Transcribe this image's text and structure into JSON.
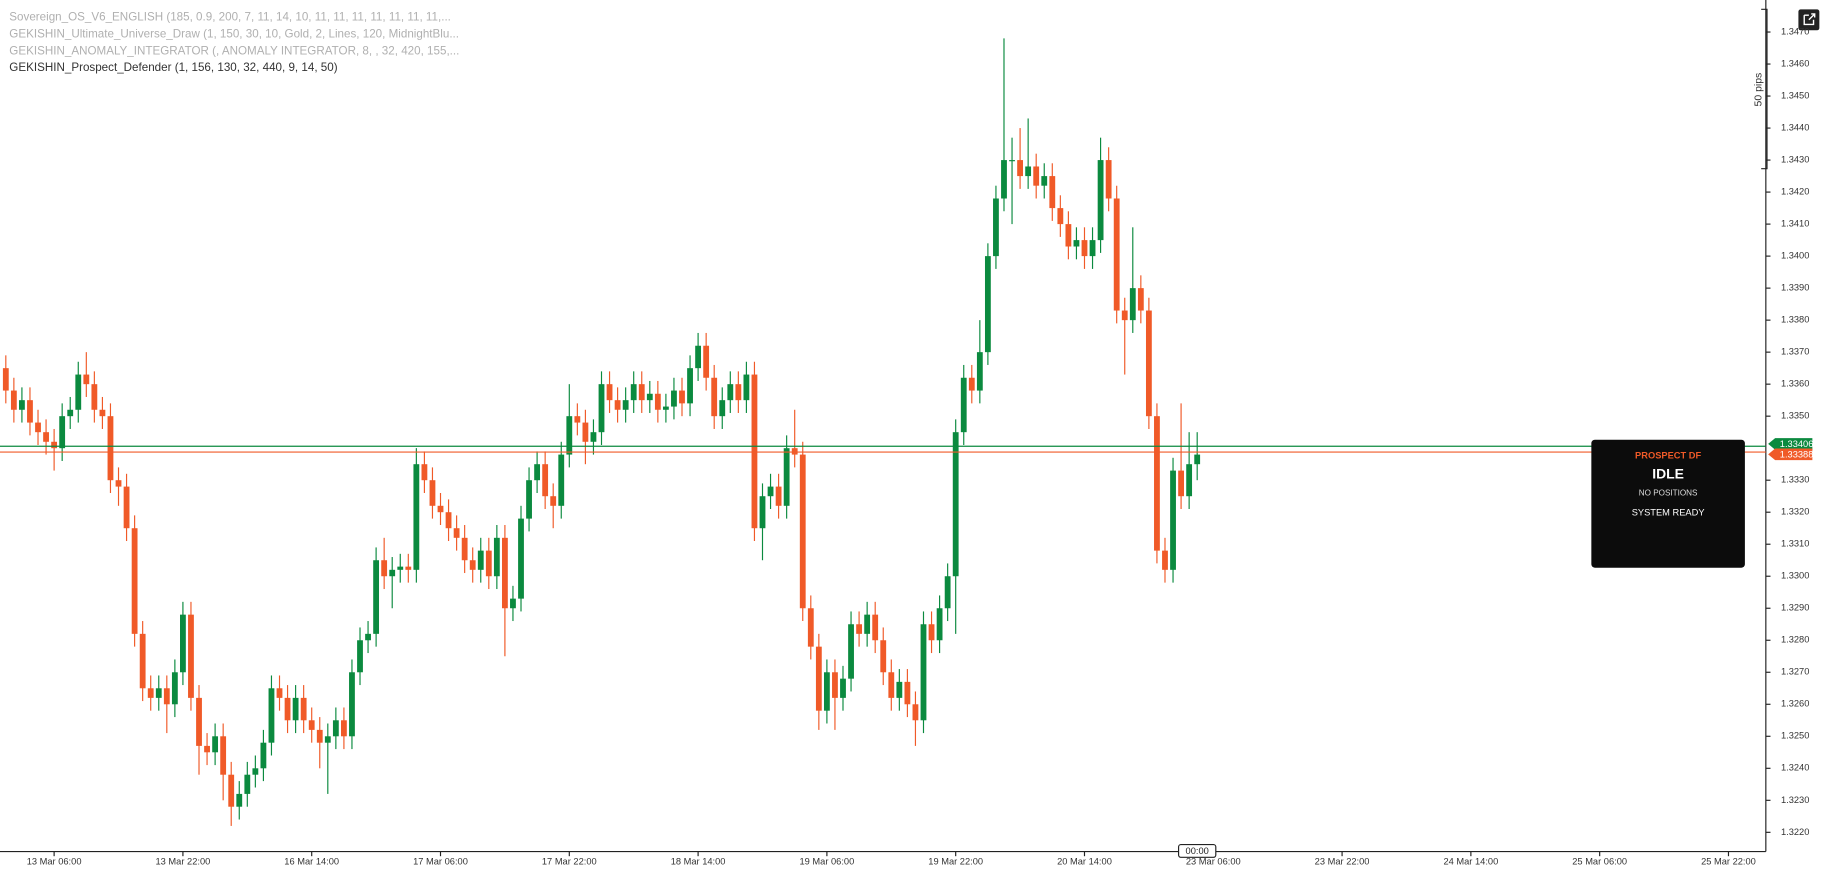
{
  "chart_data": {
    "type": "candlestick",
    "indicators": [
      "Sovereign_OS_V6_ENGLISH (185, 0.9, 200, 7, 11, 14, 10, 11, 11, 11, 11, 11, 11, 11,...",
      "GEKISHIN_Ultimate_Universe_Draw (1, 150, 30, 10, Gold, 2, Lines, 120, MidnightBlu...",
      "GEKISHIN_ANOMALY_INTEGRATOR (, ANOMALY INTEGRATOR, 8, , 32, 420, 155,...",
      "GEKISHIN_Prospect_Defender (1, 156, 130, 32, 440, 9, 14, 50)"
    ],
    "up_color": "#0b8a3f",
    "down_color": "#f05a28",
    "ylim": [
      1.3214,
      1.348
    ],
    "yticks": [
      {
        "value": 1.322,
        "label": "1.3220"
      },
      {
        "value": 1.323,
        "label": "1.3230"
      },
      {
        "value": 1.324,
        "label": "1.3240"
      },
      {
        "value": 1.325,
        "label": "1.3250"
      },
      {
        "value": 1.326,
        "label": "1.3260"
      },
      {
        "value": 1.327,
        "label": "1.3270"
      },
      {
        "value": 1.328,
        "label": "1.3280"
      },
      {
        "value": 1.329,
        "label": "1.3290"
      },
      {
        "value": 1.33,
        "label": "1.3300"
      },
      {
        "value": 1.331,
        "label": "1.3310"
      },
      {
        "value": 1.332,
        "label": "1.3320"
      },
      {
        "value": 1.333,
        "label": "1.3330"
      },
      {
        "value": 1.335,
        "label": "1.3350"
      },
      {
        "value": 1.336,
        "label": "1.3360"
      },
      {
        "value": 1.337,
        "label": "1.3370"
      },
      {
        "value": 1.338,
        "label": "1.3380"
      },
      {
        "value": 1.339,
        "label": "1.3390"
      },
      {
        "value": 1.34,
        "label": "1.3400"
      },
      {
        "value": 1.341,
        "label": "1.3410"
      },
      {
        "value": 1.342,
        "label": "1.3420"
      },
      {
        "value": 1.343,
        "label": "1.3430"
      },
      {
        "value": 1.344,
        "label": "1.3440"
      },
      {
        "value": 1.345,
        "label": "1.3450"
      },
      {
        "value": 1.346,
        "label": "1.3460"
      },
      {
        "value": 1.347,
        "label": "1.3470"
      }
    ],
    "xlabels": [
      "13 Mar 06:00",
      "13 Mar 22:00",
      "16 Mar 14:00",
      "17 Mar 06:00",
      "17 Mar 22:00",
      "18 Mar 14:00",
      "19 Mar 06:00",
      "19 Mar 22:00",
      "20 Mar 14:00",
      "23 Mar 06:00",
      "23 Mar 22:00",
      "24 Mar 14:00",
      "25 Mar 06:00",
      "25 Mar 22:00"
    ],
    "crosshair_label": "00:00",
    "scale_note": "50 pips",
    "price_lines": [
      {
        "value": 1.33406,
        "color": "#0b8a3f"
      },
      {
        "value": 1.33388,
        "color": "#f05a28"
      }
    ],
    "panel": {
      "title": "PROSPECT DF",
      "status": "IDLE",
      "positions": "NO POSITIONS",
      "system": "SYSTEM READY"
    },
    "candles": [
      [
        1.3365,
        1.3369,
        1.3354,
        1.3358
      ],
      [
        1.3358,
        1.3362,
        1.3348,
        1.3352
      ],
      [
        1.3352,
        1.3359,
        1.3348,
        1.3355
      ],
      [
        1.3355,
        1.3359,
        1.3344,
        1.3348
      ],
      [
        1.3348,
        1.3352,
        1.3341,
        1.3345
      ],
      [
        1.3345,
        1.3349,
        1.3338,
        1.3342
      ],
      [
        1.3342,
        1.3346,
        1.3333,
        1.334
      ],
      [
        1.334,
        1.3354,
        1.3336,
        1.335
      ],
      [
        1.335,
        1.3356,
        1.3346,
        1.3352
      ],
      [
        1.3352,
        1.3367,
        1.3348,
        1.3363
      ],
      [
        1.3363,
        1.337,
        1.3356,
        1.336
      ],
      [
        1.336,
        1.3364,
        1.3348,
        1.3352
      ],
      [
        1.3352,
        1.3356,
        1.3346,
        1.335
      ],
      [
        1.335,
        1.3354,
        1.3326,
        1.333
      ],
      [
        1.333,
        1.3334,
        1.3322,
        1.3328
      ],
      [
        1.3328,
        1.3332,
        1.3311,
        1.3315
      ],
      [
        1.3315,
        1.3319,
        1.3278,
        1.3282
      ],
      [
        1.3282,
        1.3286,
        1.3261,
        1.3265
      ],
      [
        1.3265,
        1.3269,
        1.3258,
        1.3262
      ],
      [
        1.3262,
        1.3269,
        1.3258,
        1.3265
      ],
      [
        1.3265,
        1.3269,
        1.3251,
        1.326
      ],
      [
        1.326,
        1.3274,
        1.3256,
        1.327
      ],
      [
        1.327,
        1.3292,
        1.3266,
        1.3288
      ],
      [
        1.3288,
        1.3292,
        1.3258,
        1.3262
      ],
      [
        1.3262,
        1.3266,
        1.3238,
        1.3247
      ],
      [
        1.3247,
        1.3251,
        1.3241,
        1.3245
      ],
      [
        1.3245,
        1.3254,
        1.3241,
        1.325
      ],
      [
        1.325,
        1.3254,
        1.323,
        1.3238
      ],
      [
        1.3238,
        1.3242,
        1.3222,
        1.3228
      ],
      [
        1.3228,
        1.3236,
        1.3224,
        1.3232
      ],
      [
        1.3232,
        1.3242,
        1.3228,
        1.3238
      ],
      [
        1.3238,
        1.3244,
        1.3234,
        1.324
      ],
      [
        1.324,
        1.3252,
        1.3236,
        1.3248
      ],
      [
        1.3248,
        1.3269,
        1.3244,
        1.3265
      ],
      [
        1.3265,
        1.3269,
        1.3258,
        1.3262
      ],
      [
        1.3262,
        1.3266,
        1.3251,
        1.3255
      ],
      [
        1.3255,
        1.3266,
        1.3251,
        1.3262
      ],
      [
        1.3262,
        1.3266,
        1.3251,
        1.3255
      ],
      [
        1.3255,
        1.3259,
        1.3248,
        1.3252
      ],
      [
        1.3252,
        1.3256,
        1.324,
        1.3248
      ],
      [
        1.3248,
        1.3254,
        1.3232,
        1.325
      ],
      [
        1.325,
        1.3259,
        1.3246,
        1.3255
      ],
      [
        1.3255,
        1.3259,
        1.3246,
        1.325
      ],
      [
        1.325,
        1.3274,
        1.3246,
        1.327
      ],
      [
        1.327,
        1.3284,
        1.3266,
        1.328
      ],
      [
        1.328,
        1.3286,
        1.3276,
        1.3282
      ],
      [
        1.3282,
        1.3309,
        1.3278,
        1.3305
      ],
      [
        1.3305,
        1.3312,
        1.3296,
        1.33
      ],
      [
        1.33,
        1.3306,
        1.329,
        1.3302
      ],
      [
        1.3302,
        1.3307,
        1.3298,
        1.3303
      ],
      [
        1.3303,
        1.3307,
        1.3298,
        1.3302
      ],
      [
        1.3302,
        1.334,
        1.3298,
        1.3335
      ],
      [
        1.3335,
        1.3339,
        1.3326,
        1.333
      ],
      [
        1.333,
        1.3334,
        1.3318,
        1.3322
      ],
      [
        1.3322,
        1.3326,
        1.3316,
        1.332
      ],
      [
        1.332,
        1.3324,
        1.3311,
        1.3315
      ],
      [
        1.3315,
        1.3319,
        1.3308,
        1.3312
      ],
      [
        1.3312,
        1.3316,
        1.3301,
        1.3305
      ],
      [
        1.3305,
        1.3309,
        1.3298,
        1.3302
      ],
      [
        1.3302,
        1.3312,
        1.3298,
        1.3308
      ],
      [
        1.3308,
        1.3312,
        1.3296,
        1.33
      ],
      [
        1.33,
        1.3316,
        1.3296,
        1.3312
      ],
      [
        1.3312,
        1.3316,
        1.3275,
        1.329
      ],
      [
        1.329,
        1.3297,
        1.3286,
        1.3293
      ],
      [
        1.3293,
        1.3322,
        1.3289,
        1.3318
      ],
      [
        1.3318,
        1.3334,
        1.3314,
        1.333
      ],
      [
        1.333,
        1.3339,
        1.3326,
        1.3335
      ],
      [
        1.3335,
        1.3339,
        1.3321,
        1.3325
      ],
      [
        1.3325,
        1.3329,
        1.3315,
        1.3322
      ],
      [
        1.3322,
        1.3342,
        1.3318,
        1.3338
      ],
      [
        1.3338,
        1.336,
        1.3334,
        1.335
      ],
      [
        1.335,
        1.3354,
        1.3344,
        1.3348
      ],
      [
        1.3348,
        1.3352,
        1.3335,
        1.3342
      ],
      [
        1.3342,
        1.3349,
        1.3338,
        1.3345
      ],
      [
        1.3345,
        1.3364,
        1.3341,
        1.336
      ],
      [
        1.336,
        1.3364,
        1.3351,
        1.3355
      ],
      [
        1.3355,
        1.3359,
        1.3348,
        1.3352
      ],
      [
        1.3352,
        1.3359,
        1.3348,
        1.3355
      ],
      [
        1.3355,
        1.3364,
        1.3351,
        1.336
      ],
      [
        1.336,
        1.3364,
        1.3351,
        1.3355
      ],
      [
        1.3355,
        1.3361,
        1.3351,
        1.3357
      ],
      [
        1.3357,
        1.3361,
        1.3348,
        1.3352
      ],
      [
        1.3352,
        1.3357,
        1.3348,
        1.3353
      ],
      [
        1.3353,
        1.3362,
        1.3349,
        1.3358
      ],
      [
        1.3358,
        1.3362,
        1.335,
        1.3354
      ],
      [
        1.3354,
        1.3369,
        1.335,
        1.3365
      ],
      [
        1.3365,
        1.3376,
        1.3361,
        1.3372
      ],
      [
        1.3372,
        1.3376,
        1.3358,
        1.3362
      ],
      [
        1.3362,
        1.3366,
        1.3346,
        1.335
      ],
      [
        1.335,
        1.3359,
        1.3346,
        1.3355
      ],
      [
        1.3355,
        1.3364,
        1.3351,
        1.336
      ],
      [
        1.336,
        1.3364,
        1.3351,
        1.3355
      ],
      [
        1.3355,
        1.3367,
        1.3351,
        1.3363
      ],
      [
        1.3363,
        1.3367,
        1.3311,
        1.3315
      ],
      [
        1.3315,
        1.3329,
        1.3305,
        1.3325
      ],
      [
        1.3325,
        1.3332,
        1.3321,
        1.3328
      ],
      [
        1.3328,
        1.3332,
        1.3318,
        1.3322
      ],
      [
        1.3322,
        1.3344,
        1.3318,
        1.334
      ],
      [
        1.334,
        1.3352,
        1.3334,
        1.3338
      ],
      [
        1.3338,
        1.3342,
        1.3286,
        1.329
      ],
      [
        1.329,
        1.3294,
        1.3274,
        1.3278
      ],
      [
        1.3278,
        1.3282,
        1.3252,
        1.3258
      ],
      [
        1.3258,
        1.3274,
        1.3254,
        1.327
      ],
      [
        1.327,
        1.3274,
        1.3252,
        1.3262
      ],
      [
        1.3262,
        1.3272,
        1.3258,
        1.3268
      ],
      [
        1.3268,
        1.3289,
        1.3264,
        1.3285
      ],
      [
        1.3285,
        1.3289,
        1.3278,
        1.3282
      ],
      [
        1.3282,
        1.3292,
        1.3278,
        1.3288
      ],
      [
        1.3288,
        1.3292,
        1.3276,
        1.328
      ],
      [
        1.328,
        1.3284,
        1.3266,
        1.327
      ],
      [
        1.327,
        1.3274,
        1.3258,
        1.3262
      ],
      [
        1.3262,
        1.3271,
        1.3258,
        1.3267
      ],
      [
        1.3267,
        1.3271,
        1.3256,
        1.326
      ],
      [
        1.326,
        1.3264,
        1.3247,
        1.3255
      ],
      [
        1.3255,
        1.3289,
        1.3251,
        1.3285
      ],
      [
        1.3285,
        1.3289,
        1.3276,
        1.328
      ],
      [
        1.328,
        1.3294,
        1.3276,
        1.329
      ],
      [
        1.329,
        1.3304,
        1.3286,
        1.33
      ],
      [
        1.33,
        1.3349,
        1.3282,
        1.3345
      ],
      [
        1.3345,
        1.3366,
        1.3341,
        1.3362
      ],
      [
        1.3362,
        1.3366,
        1.3354,
        1.3358
      ],
      [
        1.3358,
        1.338,
        1.3354,
        1.337
      ],
      [
        1.337,
        1.3404,
        1.3366,
        1.34
      ],
      [
        1.34,
        1.3422,
        1.3396,
        1.3418
      ],
      [
        1.3418,
        1.3468,
        1.3414,
        1.343
      ],
      [
        1.343,
        1.3437,
        1.341,
        1.343
      ],
      [
        1.343,
        1.344,
        1.3421,
        1.3425
      ],
      [
        1.3425,
        1.3443,
        1.3421,
        1.3428
      ],
      [
        1.3428,
        1.3432,
        1.3418,
        1.3422
      ],
      [
        1.3422,
        1.3429,
        1.3418,
        1.3425
      ],
      [
        1.3425,
        1.3429,
        1.3411,
        1.3415
      ],
      [
        1.3415,
        1.3419,
        1.3406,
        1.341
      ],
      [
        1.341,
        1.3414,
        1.3399,
        1.3403
      ],
      [
        1.3403,
        1.3409,
        1.3399,
        1.3405
      ],
      [
        1.3405,
        1.3409,
        1.3396,
        1.34
      ],
      [
        1.34,
        1.3409,
        1.3396,
        1.3405
      ],
      [
        1.3405,
        1.3437,
        1.3401,
        1.343
      ],
      [
        1.343,
        1.3434,
        1.3414,
        1.3418
      ],
      [
        1.3418,
        1.3422,
        1.3379,
        1.3383
      ],
      [
        1.3383,
        1.3387,
        1.3363,
        1.338
      ],
      [
        1.338,
        1.3409,
        1.3376,
        1.339
      ],
      [
        1.339,
        1.3394,
        1.3379,
        1.3383
      ],
      [
        1.3383,
        1.3387,
        1.3346,
        1.335
      ],
      [
        1.335,
        1.3354,
        1.3304,
        1.3308
      ],
      [
        1.3308,
        1.3312,
        1.3298,
        1.3302
      ],
      [
        1.3302,
        1.3337,
        1.3298,
        1.3333
      ],
      [
        1.3333,
        1.3354,
        1.3321,
        1.3325
      ],
      [
        1.3325,
        1.3345,
        1.3321,
        1.3335
      ],
      [
        1.3335,
        1.3345,
        1.333,
        1.3338
      ]
    ]
  }
}
